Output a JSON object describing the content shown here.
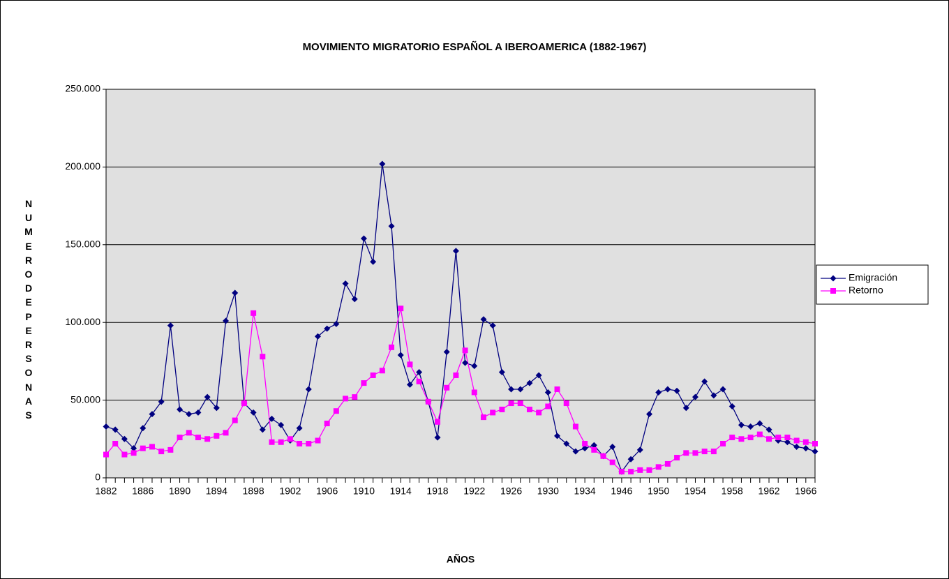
{
  "chart_data": {
    "type": "line",
    "title": "MOVIMIENTO MIGRATORIO ESPAÑOL A IBEROAMERICA (1882-1967)",
    "x_label": "AÑOS",
    "y_label": "NUMERODEPERSONAS",
    "categories": [
      "1882",
      null,
      null,
      null,
      "1886",
      null,
      null,
      null,
      "1890",
      null,
      null,
      null,
      "1894",
      null,
      null,
      null,
      "1898",
      null,
      null,
      null,
      "1902",
      null,
      null,
      null,
      "1906",
      null,
      null,
      null,
      "1910",
      null,
      null,
      null,
      "1914",
      null,
      null,
      null,
      "1918",
      null,
      null,
      null,
      "1922",
      null,
      null,
      null,
      "1926",
      null,
      null,
      null,
      "1930",
      null,
      null,
      null,
      "1934",
      null,
      null,
      null,
      "1946",
      null,
      null,
      null,
      "1950",
      null,
      null,
      null,
      "1954",
      null,
      null,
      null,
      "1958",
      null,
      null,
      null,
      "1962",
      null,
      null,
      null,
      "1966",
      null
    ],
    "series": [
      {
        "name": "Emigración",
        "color": "#000080",
        "marker": "diamond",
        "values": [
          33000,
          31000,
          25000,
          19000,
          32000,
          41000,
          49000,
          98000,
          44000,
          41000,
          42000,
          52000,
          45000,
          101000,
          119000,
          48000,
          42000,
          31000,
          38000,
          34000,
          24000,
          32000,
          57000,
          91000,
          96000,
          99000,
          125000,
          115000,
          154000,
          139000,
          202000,
          162000,
          79000,
          60000,
          68000,
          49000,
          26000,
          81000,
          146000,
          74000,
          72000,
          102000,
          98000,
          68000,
          57000,
          57000,
          61000,
          66000,
          55000,
          27000,
          22000,
          17000,
          19000,
          21000,
          14000,
          20000,
          4000,
          12000,
          18000,
          41000,
          55000,
          57000,
          56000,
          45000,
          52000,
          62000,
          53000,
          57000,
          46000,
          34000,
          33000,
          35000,
          31000,
          24000,
          23000,
          20000,
          19000,
          17000
        ]
      },
      {
        "name": "Retorno",
        "color": "#ff00ff",
        "marker": "square",
        "values": [
          15000,
          22000,
          15000,
          16000,
          19000,
          20000,
          17000,
          18000,
          26000,
          29000,
          26000,
          25000,
          27000,
          29000,
          37000,
          48000,
          106000,
          78000,
          23000,
          23000,
          25000,
          22000,
          22000,
          24000,
          35000,
          43000,
          51000,
          52000,
          61000,
          66000,
          69000,
          84000,
          109000,
          73000,
          62000,
          49000,
          36000,
          58000,
          66000,
          82000,
          55000,
          39000,
          42000,
          44000,
          48000,
          48000,
          44000,
          42000,
          46000,
          57000,
          48000,
          33000,
          22000,
          18000,
          14000,
          10000,
          4000,
          4000,
          5000,
          5000,
          7000,
          9000,
          13000,
          16000,
          16000,
          17000,
          17000,
          22000,
          26000,
          25000,
          26000,
          28000,
          25000,
          26000,
          26000,
          24000,
          23000,
          22000
        ]
      }
    ],
    "ylim": [
      0,
      250000
    ],
    "yticks": [
      0,
      {
        "value": 50000,
        "label": "50.000"
      },
      {
        "value": 100000,
        "label": "100.000"
      },
      {
        "value": 150000,
        "label": "150.000"
      },
      {
        "value": 200000,
        "label": "200.000"
      },
      {
        "value": 250000,
        "label": "250.000"
      }
    ],
    "grid": true,
    "legend": "right"
  }
}
